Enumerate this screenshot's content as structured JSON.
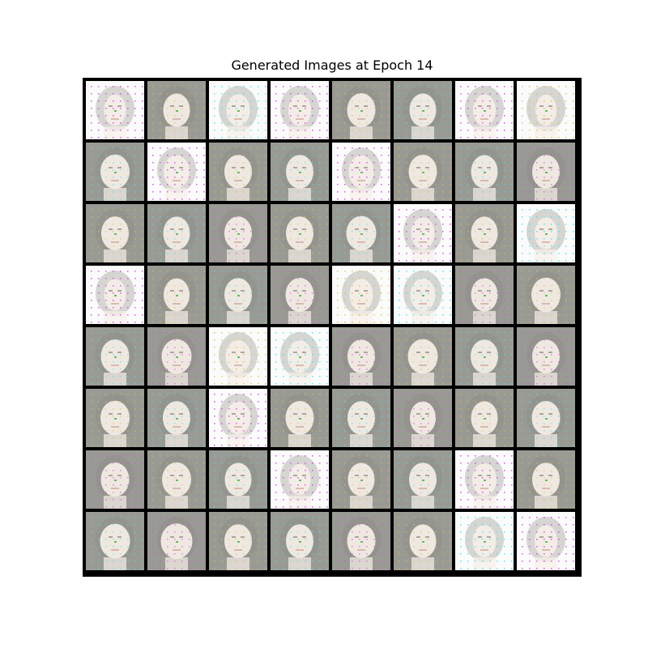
{
  "figure": {
    "title": "Generated Images at Epoch 14"
  },
  "grid": {
    "rows": 8,
    "cols": 8,
    "tiles": [
      {
        "bg": "white",
        "face": 0.35
      },
      {
        "bg": "gray",
        "face": 0.65
      },
      {
        "bg": "white",
        "face": 0.45
      },
      {
        "bg": "white",
        "face": 0.4
      },
      {
        "bg": "gray",
        "face": 0.75
      },
      {
        "bg": "gray",
        "face": 0.65
      },
      {
        "bg": "white",
        "face": 0.4
      },
      {
        "bg": "white",
        "face": 0.3
      },
      {
        "bg": "gray",
        "face": 0.8
      },
      {
        "bg": "white",
        "face": 0.6
      },
      {
        "bg": "gray",
        "face": 0.7
      },
      {
        "bg": "gray",
        "face": 0.7
      },
      {
        "bg": "white",
        "face": 0.55
      },
      {
        "bg": "gray",
        "face": 0.75
      },
      {
        "bg": "gray",
        "face": 0.65
      },
      {
        "bg": "gray",
        "face": 0.7
      },
      {
        "bg": "gray",
        "face": 0.7
      },
      {
        "bg": "gray",
        "face": 0.65
      },
      {
        "bg": "gray",
        "face": 0.7
      },
      {
        "bg": "gray",
        "face": 0.7
      },
      {
        "bg": "gray",
        "face": 0.85
      },
      {
        "bg": "white",
        "face": 0.45
      },
      {
        "bg": "gray",
        "face": 0.65
      },
      {
        "bg": "white",
        "face": 0.4
      },
      {
        "bg": "white",
        "face": 0.35
      },
      {
        "bg": "gray",
        "face": 0.6
      },
      {
        "bg": "gray",
        "face": 0.7
      },
      {
        "bg": "gray",
        "face": 0.75
      },
      {
        "bg": "white",
        "face": 0.45
      },
      {
        "bg": "white",
        "face": 0.55
      },
      {
        "bg": "gray",
        "face": 0.65
      },
      {
        "bg": "gray",
        "face": 0.8
      },
      {
        "bg": "gray",
        "face": 0.75
      },
      {
        "bg": "gray",
        "face": 0.85
      },
      {
        "bg": "white",
        "face": 0.55
      },
      {
        "bg": "white",
        "face": 0.5
      },
      {
        "bg": "gray",
        "face": 0.7
      },
      {
        "bg": "gray",
        "face": 0.85
      },
      {
        "bg": "gray",
        "face": 0.7
      },
      {
        "bg": "gray",
        "face": 0.7
      },
      {
        "bg": "gray",
        "face": 0.8
      },
      {
        "bg": "gray",
        "face": 0.7
      },
      {
        "bg": "white",
        "face": 0.55
      },
      {
        "bg": "gray",
        "face": 0.75
      },
      {
        "bg": "gray",
        "face": 0.7
      },
      {
        "bg": "gray",
        "face": 0.6
      },
      {
        "bg": "gray",
        "face": 0.65
      },
      {
        "bg": "gray",
        "face": 0.75
      },
      {
        "bg": "gray",
        "face": 0.75
      },
      {
        "bg": "gray",
        "face": 0.8
      },
      {
        "bg": "gray",
        "face": 0.65
      },
      {
        "bg": "white",
        "face": 0.35
      },
      {
        "bg": "gray",
        "face": 0.65
      },
      {
        "bg": "gray",
        "face": 0.7
      },
      {
        "bg": "white",
        "face": 0.5
      },
      {
        "bg": "gray",
        "face": 0.7
      },
      {
        "bg": "gray",
        "face": 0.85
      },
      {
        "bg": "gray",
        "face": 0.95
      },
      {
        "bg": "gray",
        "face": 0.7
      },
      {
        "bg": "gray",
        "face": 0.7
      },
      {
        "bg": "gray",
        "face": 0.75
      },
      {
        "bg": "gray",
        "face": 0.65
      },
      {
        "bg": "white",
        "face": 0.45
      },
      {
        "bg": "white",
        "face": 0.4
      }
    ]
  },
  "colors": {
    "frame": "#000000",
    "gray_bg": "#9a9a94",
    "white_bg": "#fbfbfb",
    "skin": "#f6efe8",
    "hair": "#8f9088",
    "artifact_magenta": "#e040f0",
    "artifact_cyan": "#40e8f0",
    "artifact_green": "#40b040"
  }
}
